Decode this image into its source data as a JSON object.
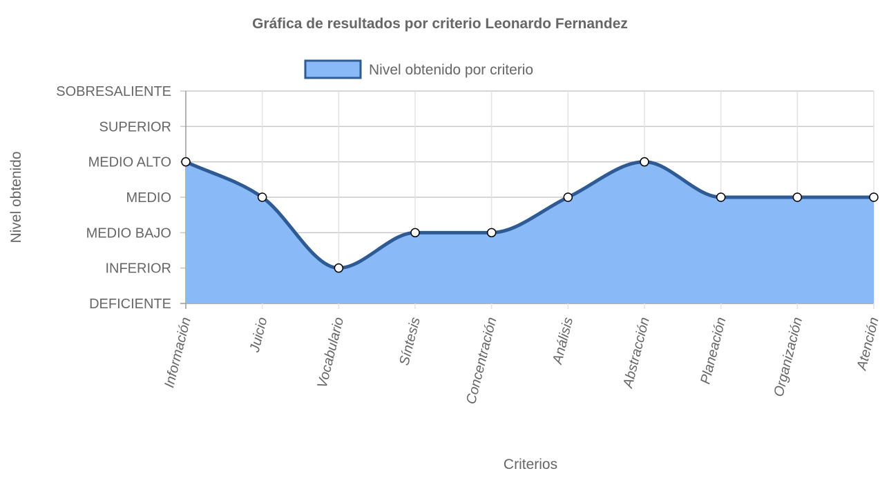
{
  "chart_data": {
    "type": "area",
    "title": "Gráfica de resultados por criterio Leonardo Fernandez",
    "xlabel": "Criterios",
    "ylabel": "Nivel obtenido",
    "y_levels": [
      "DEFICIENTE",
      "INFERIOR",
      "MEDIO BAJO",
      "MEDIO",
      "MEDIO ALTO",
      "SUPERIOR",
      "SOBRESALIENTE"
    ],
    "ylim": [
      0,
      6
    ],
    "categories": [
      "Información",
      "Juicio",
      "Vocabulario",
      "Síntesis",
      "Concentración",
      "Análisis",
      "Abstracción",
      "Planeación",
      "Organización",
      "Atención"
    ],
    "series": [
      {
        "name": "Nivel obtenido por criterio",
        "values": [
          4,
          3,
          1,
          2,
          2,
          3,
          4,
          3,
          3,
          3
        ]
      }
    ],
    "legend_position": "top",
    "grid": true,
    "colors": {
      "fill": "#8ab9f7",
      "line": "#2f5b94",
      "grid": "#dcdcdc",
      "text": "#666666"
    }
  }
}
